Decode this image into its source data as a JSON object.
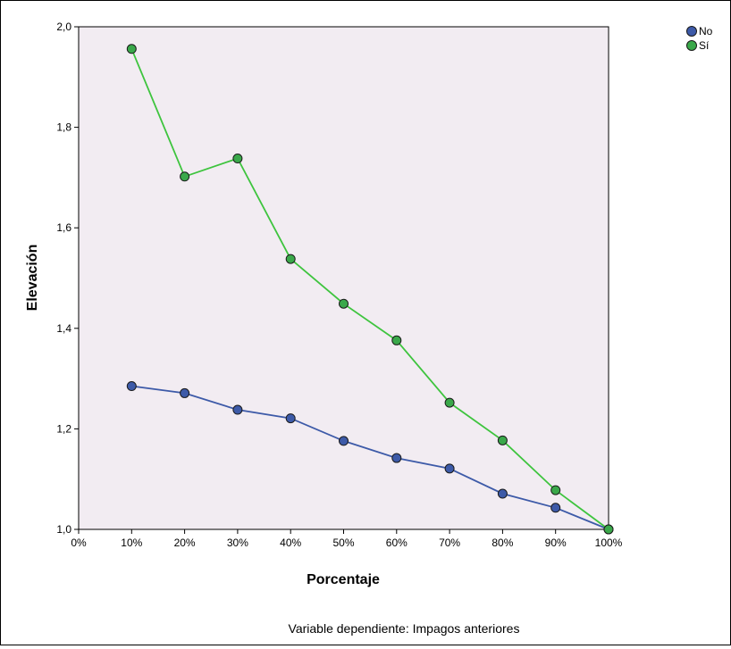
{
  "chart_data": {
    "type": "line",
    "xlabel": "Porcentaje",
    "ylabel": "Elevación",
    "footnote": "Variable dependiente: Impagos anteriores",
    "categories": [
      "0%",
      "10%",
      "20%",
      "30%",
      "40%",
      "50%",
      "60%",
      "70%",
      "80%",
      "90%",
      "100%"
    ],
    "x": [
      0,
      10,
      20,
      30,
      40,
      50,
      60,
      70,
      80,
      90,
      100
    ],
    "xlim": [
      0,
      100
    ],
    "ylim": [
      1.0,
      2.0
    ],
    "yticks": [
      1.0,
      1.2,
      1.4,
      1.6,
      1.8,
      2.0
    ],
    "ytick_labels": [
      "1,0",
      "1,2",
      "1,4",
      "1,6",
      "1,8",
      "2,0"
    ],
    "grid": false,
    "legend_position": "top-right",
    "plot_background": "#f2ecf2",
    "series": [
      {
        "name": "No",
        "color": "#3d5aa8",
        "marker_color": "#3d5aa8",
        "x": [
          10,
          20,
          30,
          40,
          50,
          60,
          70,
          80,
          90,
          100
        ],
        "values": [
          1.285,
          1.271,
          1.238,
          1.221,
          1.176,
          1.142,
          1.121,
          1.071,
          1.043,
          1.0
        ]
      },
      {
        "name": "Sí",
        "color": "#3ec43e",
        "marker_color": "#3aa84a",
        "x": [
          10,
          20,
          30,
          40,
          50,
          60,
          70,
          80,
          90,
          100
        ],
        "values": [
          1.956,
          1.702,
          1.738,
          1.538,
          1.449,
          1.376,
          1.252,
          1.177,
          1.078,
          1.0
        ]
      }
    ]
  }
}
